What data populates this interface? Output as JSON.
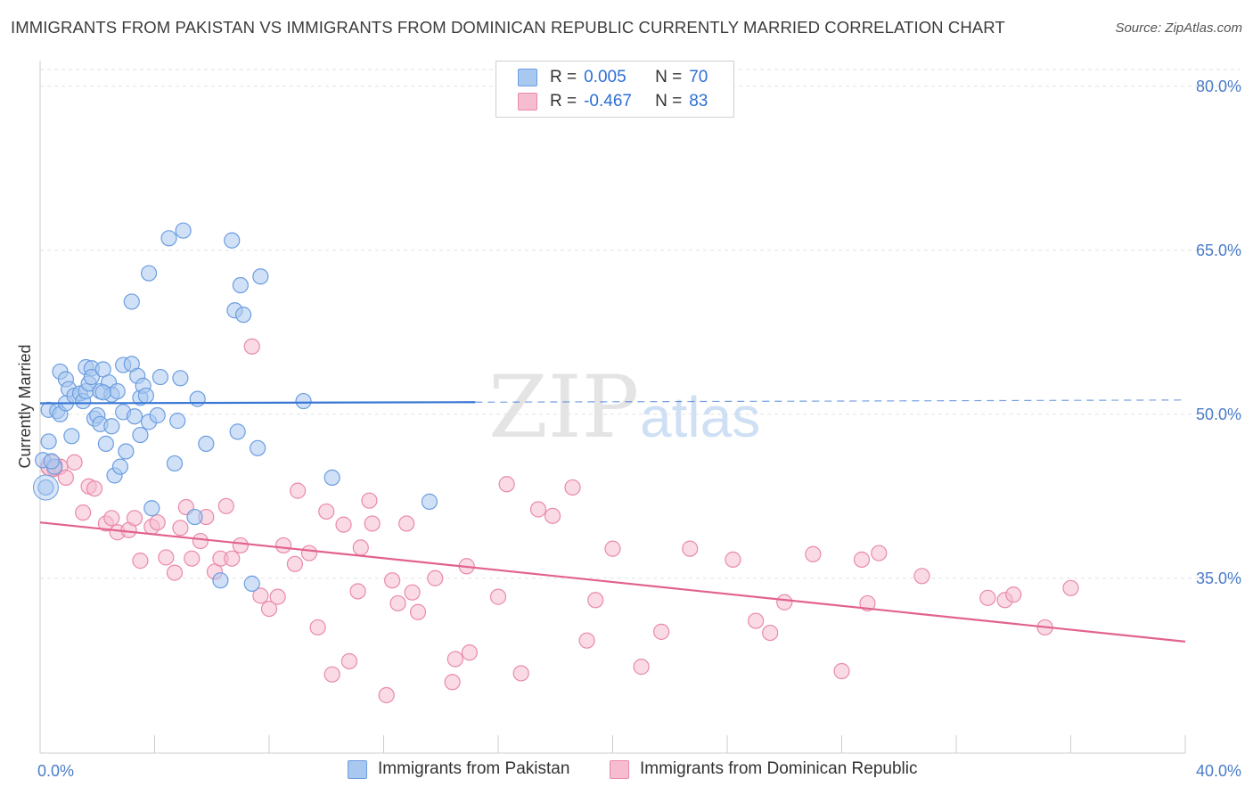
{
  "title": "IMMIGRANTS FROM PAKISTAN VS IMMIGRANTS FROM DOMINICAN REPUBLIC CURRENTLY MARRIED CORRELATION CHART",
  "source": "Source: ZipAtlas.com",
  "watermark": {
    "zip": "ZIP",
    "atlas": "atlas"
  },
  "colors": {
    "pakistan_fill": "#a9c8f0",
    "pakistan_stroke": "#6b9de0",
    "pakistan_line": "#3a78d4",
    "dominican_fill": "#f6bcd0",
    "dominican_stroke": "#e98aa9",
    "dominican_line": "#e2628f",
    "axis_text": "#4a7cc8",
    "grid": "#e2e2e2"
  },
  "legend": {
    "rows": [
      {
        "r_label": "R =",
        "r_value": "0.005",
        "n_label": "N =",
        "n_value": "70"
      },
      {
        "r_label": "R =",
        "r_value": "-0.467",
        "n_label": "N =",
        "n_value": "83"
      }
    ]
  },
  "bottom_legend": [
    "Immigrants from Pakistan",
    "Immigrants from Dominican Republic"
  ],
  "chart_data": {
    "type": "scatter",
    "title": "IMMIGRANTS FROM PAKISTAN VS IMMIGRANTS FROM DOMINICAN REPUBLIC CURRENTLY MARRIED CORRELATION CHART",
    "xlabel": "",
    "ylabel": "Currently Married",
    "xlim": [
      0,
      40
    ],
    "ylim": [
      19,
      83
    ],
    "x_tick_labels": [
      "0.0%",
      "40.0%"
    ],
    "y_ticks": [
      35,
      50,
      65,
      80
    ],
    "y_tick_labels": [
      "35.0%",
      "50.0%",
      "65.0%",
      "80.0%"
    ],
    "grid": true,
    "legend_position": "top-center",
    "series": [
      {
        "name": "Immigrants from Pakistan",
        "r": 0.005,
        "n": 70,
        "trend": {
          "x": [
            0,
            15.2
          ],
          "y": [
            51.0,
            51.1
          ],
          "dashed_to_x": 40,
          "dashed_y": 51.3
        },
        "points": [
          [
            0.1,
            45.8
          ],
          [
            0.2,
            43.3
          ],
          [
            0.3,
            47.5
          ],
          [
            0.3,
            50.4
          ],
          [
            0.5,
            45.2
          ],
          [
            0.6,
            50.3
          ],
          [
            0.7,
            53.9
          ],
          [
            0.7,
            50.0
          ],
          [
            0.9,
            53.2
          ],
          [
            0.9,
            51.0
          ],
          [
            1.0,
            52.3
          ],
          [
            1.1,
            48.0
          ],
          [
            1.2,
            51.7
          ],
          [
            1.4,
            51.9
          ],
          [
            1.5,
            51.2
          ],
          [
            1.6,
            52.1
          ],
          [
            1.6,
            54.3
          ],
          [
            1.7,
            52.8
          ],
          [
            1.8,
            54.2
          ],
          [
            1.8,
            53.4
          ],
          [
            1.9,
            49.6
          ],
          [
            2.0,
            49.9
          ],
          [
            2.1,
            49.1
          ],
          [
            2.1,
            52.1
          ],
          [
            2.2,
            54.1
          ],
          [
            2.3,
            47.3
          ],
          [
            2.4,
            52.9
          ],
          [
            2.5,
            48.9
          ],
          [
            2.5,
            51.8
          ],
          [
            2.6,
            44.4
          ],
          [
            2.7,
            52.1
          ],
          [
            2.8,
            45.2
          ],
          [
            2.9,
            54.5
          ],
          [
            2.9,
            50.2
          ],
          [
            3.0,
            46.6
          ],
          [
            3.2,
            54.6
          ],
          [
            3.2,
            60.3
          ],
          [
            3.3,
            49.8
          ],
          [
            3.4,
            53.5
          ],
          [
            3.5,
            48.1
          ],
          [
            3.5,
            51.5
          ],
          [
            3.6,
            52.6
          ],
          [
            3.7,
            51.7
          ],
          [
            3.8,
            49.3
          ],
          [
            3.8,
            62.9
          ],
          [
            3.9,
            41.4
          ],
          [
            4.1,
            49.9
          ],
          [
            4.2,
            53.4
          ],
          [
            4.5,
            66.1
          ],
          [
            4.7,
            45.5
          ],
          [
            4.8,
            49.4
          ],
          [
            4.9,
            53.3
          ],
          [
            5.0,
            66.8
          ],
          [
            5.4,
            40.6
          ],
          [
            5.5,
            51.4
          ],
          [
            5.8,
            47.3
          ],
          [
            6.3,
            34.8
          ],
          [
            6.7,
            65.9
          ],
          [
            6.8,
            59.5
          ],
          [
            6.9,
            48.4
          ],
          [
            7.0,
            61.8
          ],
          [
            7.1,
            59.1
          ],
          [
            7.4,
            34.5
          ],
          [
            7.6,
            46.9
          ],
          [
            7.7,
            62.6
          ],
          [
            9.2,
            51.2
          ],
          [
            10.2,
            44.2
          ],
          [
            13.6,
            42.0
          ],
          [
            0.4,
            45.7
          ],
          [
            2.2,
            52.0
          ]
        ]
      },
      {
        "name": "Immigrants from Dominican Republic",
        "r": -0.467,
        "n": 83,
        "trend": {
          "x": [
            0,
            40
          ],
          "y": [
            40.1,
            29.2
          ]
        },
        "points": [
          [
            0.3,
            45.1
          ],
          [
            0.5,
            45.0
          ],
          [
            0.7,
            45.2
          ],
          [
            0.9,
            44.2
          ],
          [
            1.2,
            45.6
          ],
          [
            1.5,
            41.0
          ],
          [
            1.7,
            43.4
          ],
          [
            1.9,
            43.2
          ],
          [
            2.3,
            40.0
          ],
          [
            2.5,
            40.5
          ],
          [
            2.7,
            39.2
          ],
          [
            3.1,
            39.4
          ],
          [
            3.3,
            40.5
          ],
          [
            3.5,
            36.6
          ],
          [
            3.9,
            39.7
          ],
          [
            4.1,
            40.1
          ],
          [
            4.4,
            36.9
          ],
          [
            4.7,
            35.5
          ],
          [
            4.9,
            39.6
          ],
          [
            5.1,
            41.5
          ],
          [
            5.3,
            36.8
          ],
          [
            5.6,
            38.4
          ],
          [
            5.8,
            40.6
          ],
          [
            6.1,
            35.6
          ],
          [
            6.3,
            36.8
          ],
          [
            6.5,
            41.6
          ],
          [
            6.7,
            36.8
          ],
          [
            7.0,
            38.0
          ],
          [
            7.4,
            56.2
          ],
          [
            7.7,
            33.4
          ],
          [
            8.0,
            32.2
          ],
          [
            8.3,
            33.3
          ],
          [
            8.5,
            38.0
          ],
          [
            8.9,
            36.3
          ],
          [
            9.0,
            43.0
          ],
          [
            9.4,
            37.3
          ],
          [
            9.7,
            30.5
          ],
          [
            10.0,
            41.1
          ],
          [
            10.2,
            26.2
          ],
          [
            10.6,
            39.9
          ],
          [
            10.8,
            27.4
          ],
          [
            11.1,
            33.8
          ],
          [
            11.2,
            37.8
          ],
          [
            11.5,
            42.1
          ],
          [
            11.6,
            40.0
          ],
          [
            12.1,
            24.3
          ],
          [
            12.3,
            34.8
          ],
          [
            12.5,
            32.7
          ],
          [
            12.8,
            40.0
          ],
          [
            13.0,
            33.7
          ],
          [
            13.2,
            31.9
          ],
          [
            13.8,
            35.0
          ],
          [
            14.4,
            25.5
          ],
          [
            14.5,
            27.6
          ],
          [
            14.9,
            36.1
          ],
          [
            15.0,
            28.2
          ],
          [
            16.0,
            33.3
          ],
          [
            16.3,
            43.6
          ],
          [
            16.8,
            26.3
          ],
          [
            17.4,
            41.3
          ],
          [
            17.9,
            40.7
          ],
          [
            18.6,
            43.3
          ],
          [
            19.1,
            29.3
          ],
          [
            19.4,
            33.0
          ],
          [
            20.0,
            37.7
          ],
          [
            21.0,
            26.9
          ],
          [
            21.7,
            30.1
          ],
          [
            22.7,
            37.7
          ],
          [
            24.2,
            36.7
          ],
          [
            25.0,
            31.1
          ],
          [
            25.5,
            30.0
          ],
          [
            26.0,
            32.8
          ],
          [
            27.0,
            37.2
          ],
          [
            28.0,
            26.5
          ],
          [
            28.7,
            36.7
          ],
          [
            28.9,
            32.7
          ],
          [
            29.3,
            37.3
          ],
          [
            30.8,
            35.2
          ],
          [
            33.1,
            33.2
          ],
          [
            33.7,
            33.0
          ],
          [
            34.0,
            33.5
          ],
          [
            35.1,
            30.5
          ],
          [
            36.0,
            34.1
          ]
        ]
      }
    ]
  }
}
